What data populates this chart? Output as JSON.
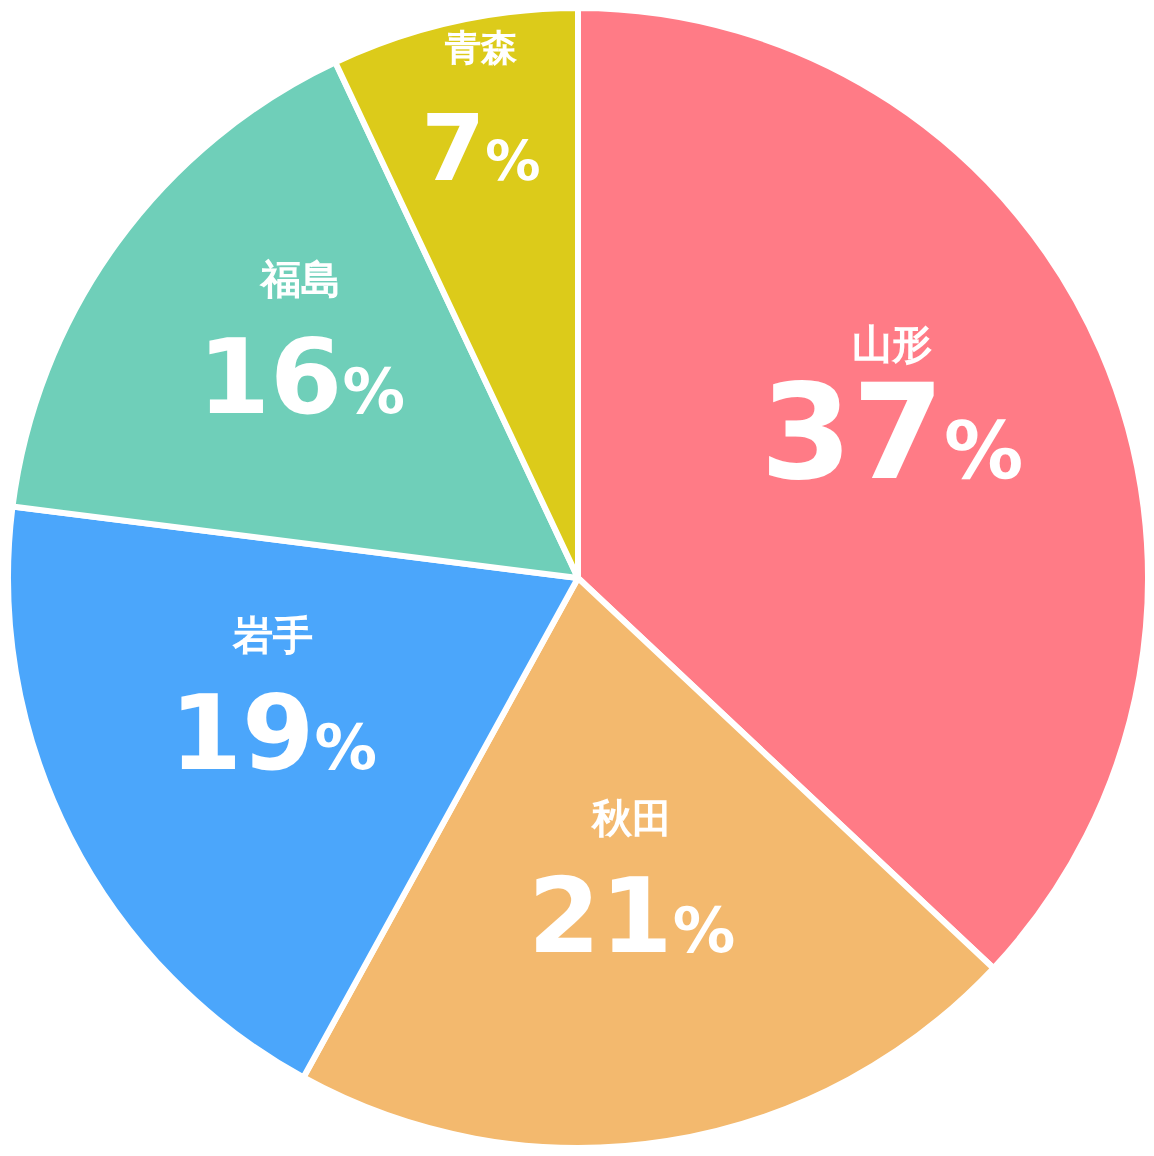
{
  "chart_data": {
    "type": "pie",
    "categories": [
      "山形",
      "秋田",
      "岩手",
      "福島",
      "青森"
    ],
    "values": [
      37,
      21,
      19,
      16,
      7
    ],
    "value_labels": [
      "37%",
      "21%",
      "19%",
      "16%",
      "7%"
    ],
    "colors": [
      "#ff7b86",
      "#f3b96e",
      "#4ba6fb",
      "#6fcfb9",
      "#dccb1a"
    ]
  }
}
